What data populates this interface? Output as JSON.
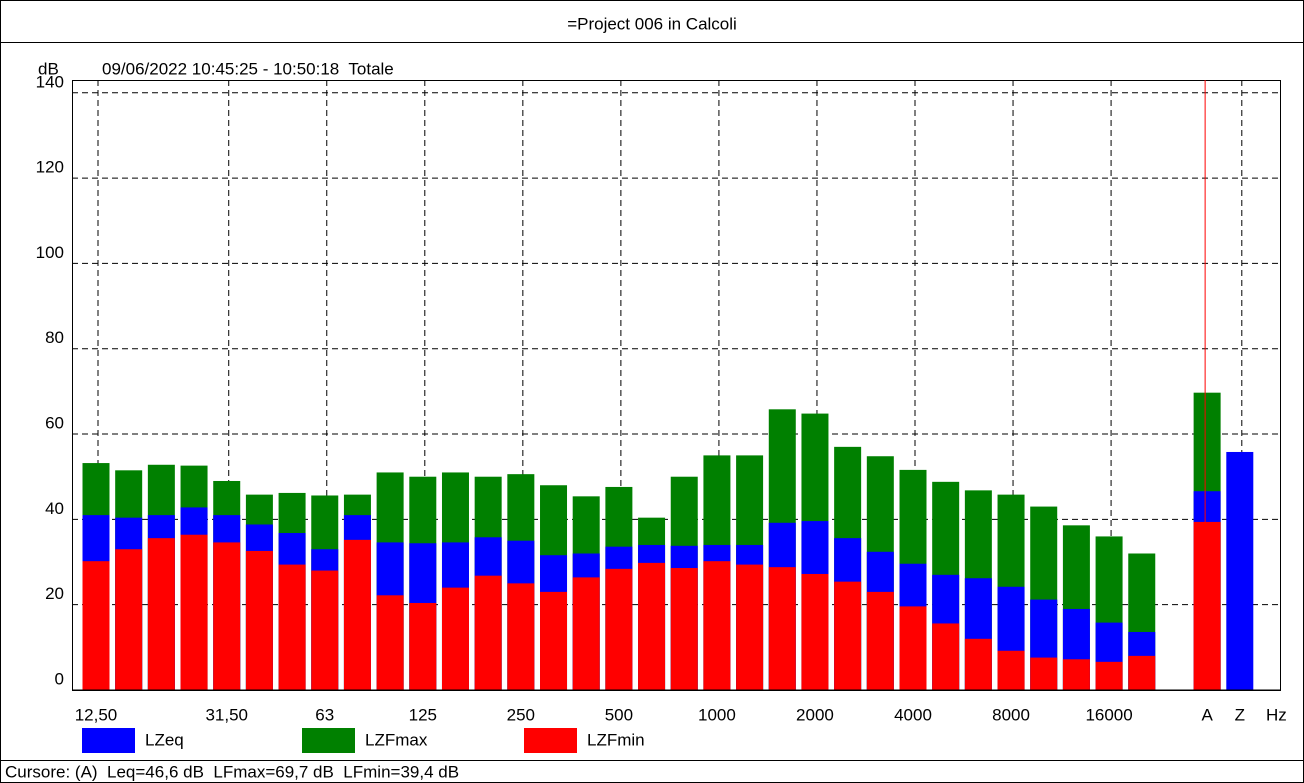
{
  "chart_data": {
    "type": "bar",
    "title": "=Project 006 in Calcoli",
    "subtitle": "09/06/2022 10:45:25 - 10:50:18  Totale",
    "y_label": "dB",
    "x_label": "Hz",
    "annotation": "Cursore: (A)  Leq=46,6 dB  LFmax=69,7 dB  LFmin=39,4 dB",
    "categories": [
      "12,50",
      null,
      null,
      null,
      "31,50",
      null,
      null,
      "63",
      null,
      null,
      "125",
      null,
      null,
      "250",
      null,
      null,
      "500",
      null,
      null,
      "1000",
      null,
      null,
      "2000",
      null,
      null,
      "4000",
      null,
      null,
      "8000",
      null,
      null,
      "16000",
      null,
      null,
      "A",
      "Z"
    ],
    "series": [
      {
        "name": "LZeq",
        "color": "#0000ff",
        "values": [
          41,
          40.4,
          41,
          42.8,
          41,
          38.8,
          36.8,
          33,
          41,
          34.6,
          34.4,
          34.6,
          35.8,
          35,
          31.6,
          32,
          33.6,
          34,
          33.8,
          34,
          34,
          39.2,
          39.6,
          35.6,
          32.4,
          29.6,
          27,
          26.2,
          24.2,
          21.2,
          19,
          15.8,
          13.6,
          null,
          46.6,
          55.8
        ]
      },
      {
        "name": "LZFmax",
        "color": "#008000",
        "values": [
          53.2,
          51.5,
          52.8,
          52.6,
          49,
          45.8,
          46.2,
          45.6,
          45.8,
          51,
          50,
          51,
          50,
          50.6,
          48,
          45.4,
          47.6,
          40.4,
          50,
          55,
          55,
          65.8,
          64.8,
          57,
          54.8,
          51.6,
          48.8,
          46.8,
          45.8,
          43,
          38.6,
          36,
          32,
          null,
          69.7,
          null
        ]
      },
      {
        "name": "LZFmin",
        "color": "#ff0000",
        "values": [
          30.2,
          33,
          35.6,
          36.4,
          34.6,
          32.6,
          29.4,
          28,
          35.2,
          22.2,
          20.4,
          24,
          26.8,
          25,
          23,
          26.4,
          28.4,
          29.8,
          28.6,
          30.2,
          29.4,
          28.8,
          27.2,
          25.4,
          23,
          19.6,
          15.6,
          12,
          9.2,
          7.6,
          7.2,
          6.6,
          8,
          null,
          39.4,
          null
        ]
      }
    ],
    "draw_order": [
      "LZFmax",
      "LZeq",
      "LZFmin"
    ],
    "cursor": "A",
    "ylim": [
      0,
      143
    ],
    "yticks": [
      0,
      20,
      40,
      60,
      80,
      100,
      120,
      140
    ],
    "grid": true
  }
}
